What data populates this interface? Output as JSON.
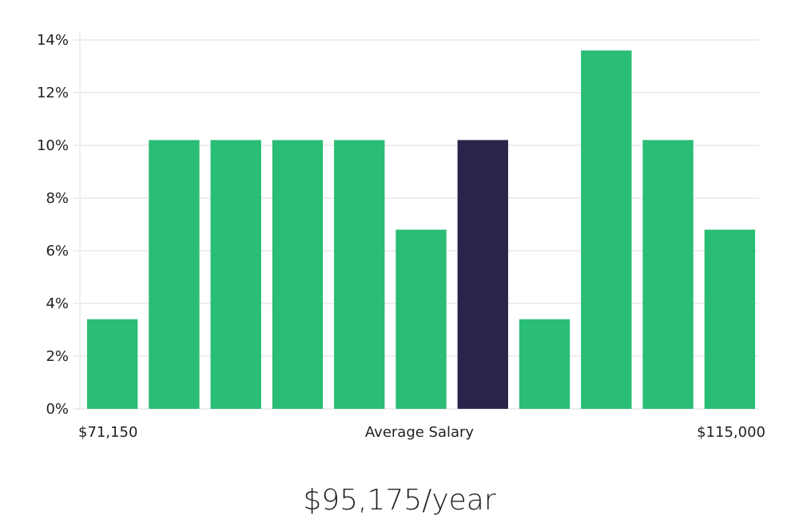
{
  "chart_data": {
    "type": "bar",
    "categories": [
      "1",
      "2",
      "3",
      "4",
      "5",
      "6",
      "7",
      "8",
      "9",
      "10",
      "11"
    ],
    "values": [
      3.4,
      10.2,
      10.2,
      10.2,
      10.2,
      6.8,
      10.2,
      3.4,
      13.6,
      10.2,
      6.8
    ],
    "highlight_index": 6,
    "ylim": [
      0,
      14
    ],
    "yticks": [
      0,
      2,
      4,
      6,
      8,
      10,
      12,
      14
    ],
    "y_tick_suffix": "%",
    "x_start_label": "$71,150",
    "x_center_label": "Average Salary",
    "x_end_label": "$115,000",
    "grid": true,
    "colors": {
      "bar": "#2abd75",
      "highlight": "#28244a",
      "grid": "#dddddd"
    }
  },
  "headline": "$95,175/year"
}
